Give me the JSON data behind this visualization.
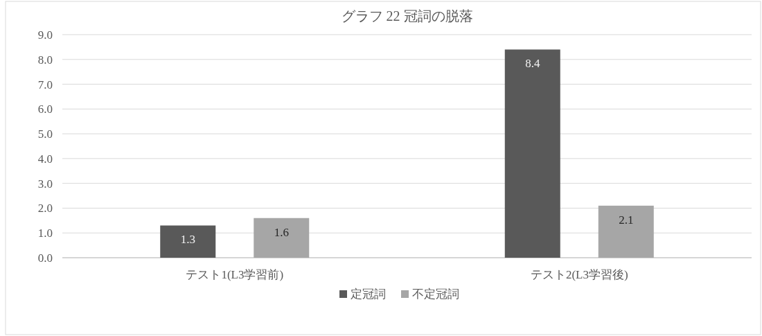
{
  "chart_data": {
    "type": "bar",
    "title": "グラフ 22 冠詞の脱落",
    "categories": [
      "テスト1(L3学習前)",
      "テスト2(L3学習後)"
    ],
    "series": [
      {
        "name": "定冠詞",
        "color": "#595959",
        "values": [
          1.3,
          8.4
        ]
      },
      {
        "name": "不定冠詞",
        "color": "#a6a6a6",
        "values": [
          1.6,
          2.1
        ]
      }
    ],
    "ylim": [
      0,
      9
    ],
    "yticks": [
      {
        "value": 0,
        "label": "0.0"
      },
      {
        "value": 1,
        "label": "1.0"
      },
      {
        "value": 2,
        "label": "2.0"
      },
      {
        "value": 3,
        "label": "3.0"
      },
      {
        "value": 4,
        "label": "4.0"
      },
      {
        "value": 5,
        "label": "5.0"
      },
      {
        "value": 6,
        "label": "6.0"
      },
      {
        "value": 7,
        "label": "7.0"
      },
      {
        "value": 8,
        "label": "8.0"
      },
      {
        "value": 9,
        "label": "9.0"
      }
    ],
    "grid": "y",
    "legend": "bottom",
    "data_labels": true
  }
}
